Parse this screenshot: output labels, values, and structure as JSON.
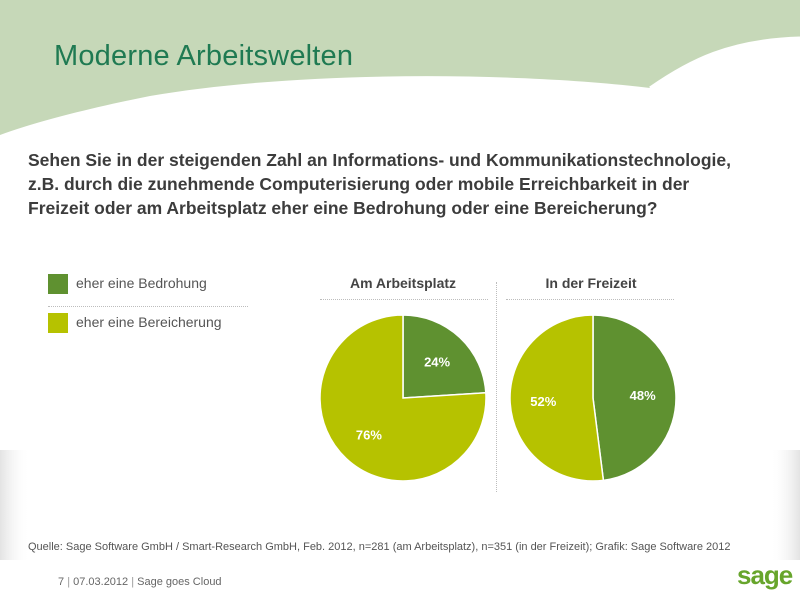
{
  "header": {
    "title": "Moderne Arbeitswelten"
  },
  "question": {
    "lines": [
      "Sehen Sie in der steigenden Zahl an Informations- und Kommunikationstechnologie,",
      "z.B. durch die zunehmende Computerisierung oder mobile Erreichbarkeit in der",
      "Freizeit oder am Arbeitsplatz eher eine Bedrohung oder eine Bereicherung?"
    ]
  },
  "colors": {
    "bedrohung": "#5f9130",
    "bereicherung": "#b6c200",
    "header_band": "#c6d8b8",
    "title": "#1f7a52"
  },
  "chart_data": [
    {
      "type": "pie",
      "title": "Am Arbeitsplatz",
      "legend": "left",
      "slices": [
        {
          "label": "eher eine Bedrohung",
          "value": 24,
          "display": "24%"
        },
        {
          "label": "eher eine Bereicherung",
          "value": 76,
          "display": "76%"
        }
      ]
    },
    {
      "type": "pie",
      "title": "In der Freizeit",
      "legend": "left",
      "slices": [
        {
          "label": "eher eine Bedrohung",
          "value": 48,
          "display": "48%"
        },
        {
          "label": "eher eine Bereicherung",
          "value": 52,
          "display": "52%"
        }
      ]
    }
  ],
  "legend": {
    "items": [
      {
        "label": "eher eine Bedrohung",
        "color": "#5f9130"
      },
      {
        "label": "eher eine Bereicherung",
        "color": "#b6c200"
      }
    ]
  },
  "source": "Quelle: Sage Software GmbH / Smart-Research GmbH, Feb. 2012, n=281 (am Arbeitsplatz), n=351 (in der Freizeit); Grafik: Sage Software 2012",
  "footer": {
    "page": "7",
    "date": "07.03.2012",
    "text": "Sage goes Cloud",
    "separator": "|"
  },
  "logo": {
    "text": "sage"
  }
}
